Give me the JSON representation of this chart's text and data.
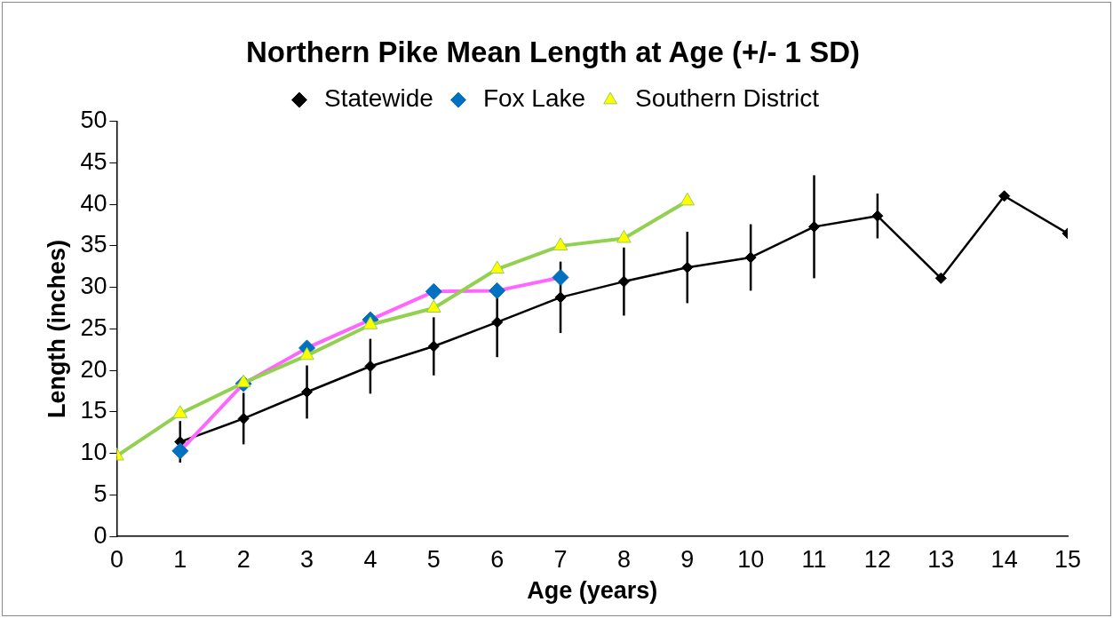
{
  "chart_data": {
    "type": "line",
    "title": "Northern Pike Mean Length at Age (+/- 1 SD)",
    "xlabel": "Age (years)",
    "ylabel": "Length (inches)",
    "xlim": [
      0,
      15
    ],
    "xticks": [
      0,
      1,
      2,
      3,
      4,
      5,
      6,
      7,
      8,
      9,
      10,
      11,
      12,
      13,
      14,
      15
    ],
    "ylim": [
      0,
      50
    ],
    "yticks": [
      0,
      5,
      10,
      15,
      20,
      25,
      30,
      35,
      40,
      45,
      50
    ],
    "grid": false,
    "legend": "top",
    "series": [
      {
        "name": "Statewide",
        "color": "#000000",
        "marker": "diamond",
        "x": [
          1,
          2,
          3,
          4,
          5,
          6,
          7,
          8,
          9,
          10,
          11,
          12,
          13,
          14,
          15
        ],
        "values": [
          11.4,
          14.2,
          17.4,
          20.5,
          22.9,
          25.8,
          28.8,
          30.7,
          32.4,
          33.6,
          37.3,
          38.6,
          31.1,
          41.0,
          36.5
        ],
        "errors": [
          2.5,
          3.1,
          3.2,
          3.3,
          3.5,
          4.2,
          4.3,
          4.1,
          4.3,
          4.0,
          6.2,
          2.7,
          null,
          null,
          null
        ]
      },
      {
        "name": "Fox Lake",
        "color": "#ff66ff",
        "marker": "diamond",
        "x": [
          1,
          2,
          3,
          4,
          5,
          6,
          7
        ],
        "values": [
          10.3,
          18.4,
          22.7,
          26.1,
          29.5,
          29.6,
          31.2
        ]
      },
      {
        "name": "Southern District",
        "color": "#92d050",
        "marker": "triangle",
        "x": [
          0,
          1,
          2,
          3,
          4,
          5,
          6,
          7,
          8,
          9
        ],
        "values": [
          9.7,
          14.8,
          18.5,
          21.8,
          25.5,
          27.5,
          32.2,
          35.0,
          35.9,
          40.4
        ]
      }
    ]
  }
}
